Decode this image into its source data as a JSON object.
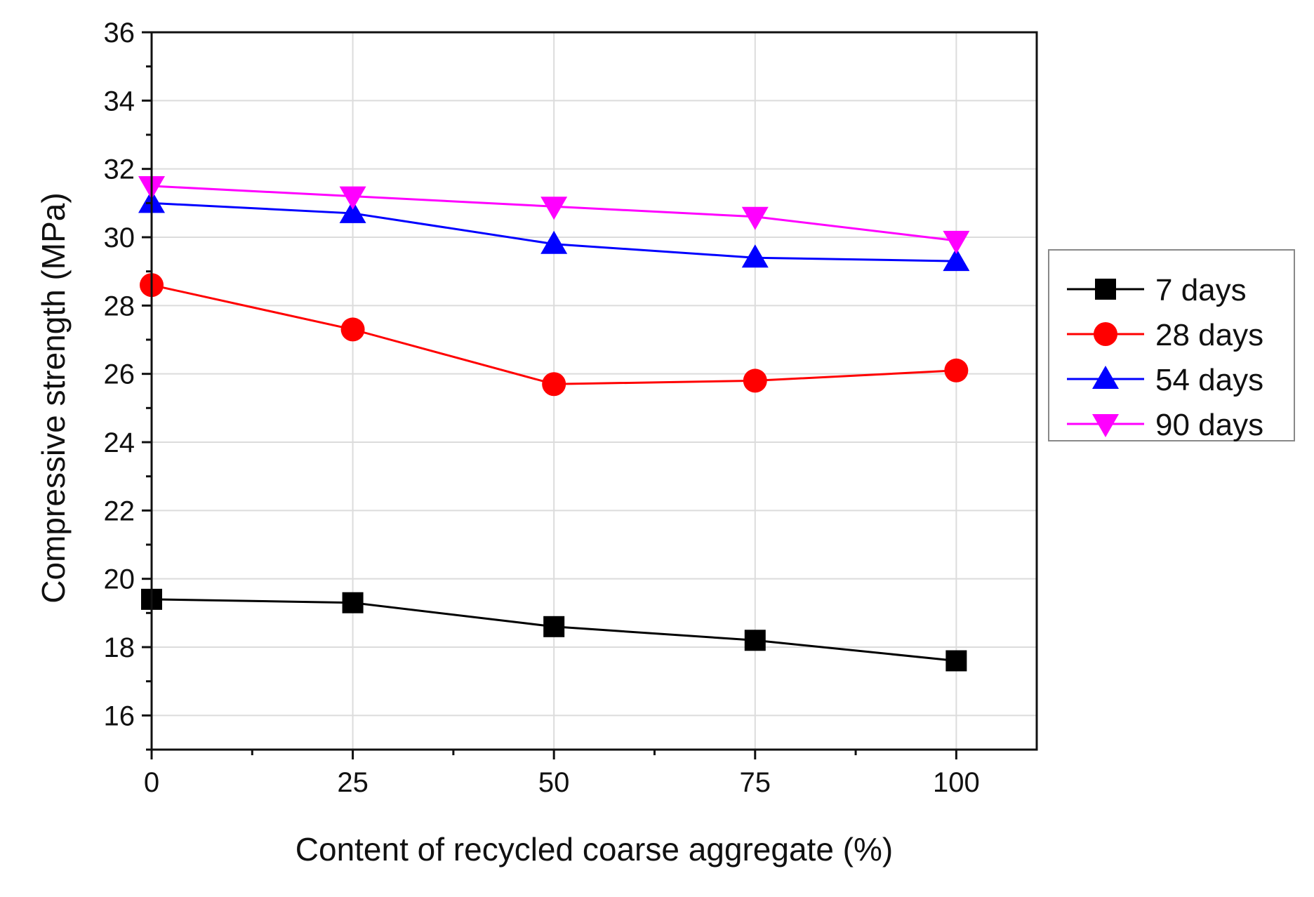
{
  "chart_data": {
    "type": "line",
    "title": "",
    "xlabel": "Content of recycled coarse aggregate (%)",
    "ylabel": "Compressive strength (MPa)",
    "x": [
      0,
      25,
      50,
      75,
      100
    ],
    "xlim": [
      0,
      110
    ],
    "ylim": [
      15,
      36
    ],
    "xticks": [
      "0",
      "25",
      "50",
      "75",
      "100"
    ],
    "yticks": [
      "16",
      "18",
      "20",
      "22",
      "24",
      "26",
      "28",
      "30",
      "32",
      "34",
      "36"
    ],
    "grid": true,
    "legend_position": "right",
    "series": [
      {
        "name": "7 days",
        "color": "#000000",
        "marker": "square",
        "values": [
          19.4,
          19.3,
          18.6,
          18.2,
          17.6
        ]
      },
      {
        "name": "28 days",
        "color": "#ff0000",
        "marker": "circle",
        "values": [
          28.6,
          27.3,
          25.7,
          25.8,
          26.1
        ]
      },
      {
        "name": "54 days",
        "color": "#0000ff",
        "marker": "triangle-up",
        "values": [
          31.0,
          30.7,
          29.8,
          29.4,
          29.3
        ]
      },
      {
        "name": "90 days",
        "color": "#ff00ff",
        "marker": "triangle-down",
        "values": [
          31.5,
          31.2,
          30.9,
          30.6,
          29.9
        ]
      }
    ]
  }
}
